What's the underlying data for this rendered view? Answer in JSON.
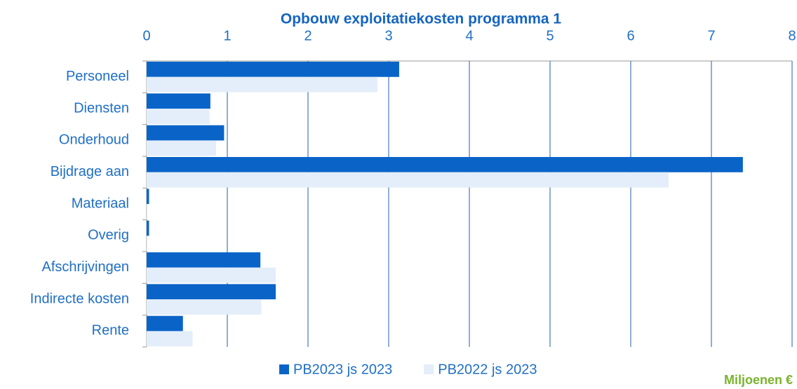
{
  "chart_data": {
    "type": "barh",
    "title": "Opbouw exploitatiekosten programma 1",
    "categories": [
      "Personeel",
      "Diensten",
      "Onderhoud",
      "Bijdrage aan",
      "Materiaal",
      "Overig",
      "Afschrijvingen",
      "Indirecte kosten",
      "Rente"
    ],
    "series": [
      {
        "name": "PB2023 js 2023",
        "color": "#0a64c8",
        "values": [
          3.13,
          0.79,
          0.96,
          7.39,
          0.03,
          0.03,
          1.41,
          1.6,
          0.45
        ]
      },
      {
        "name": "PB2022 js 2023",
        "color": "#e3eefa",
        "values": [
          2.86,
          0.78,
          0.86,
          6.47,
          0.01,
          0.01,
          1.6,
          1.42,
          0.57
        ]
      }
    ],
    "xlim": [
      0,
      8
    ],
    "xticks": [
      0,
      1,
      2,
      3,
      4,
      5,
      6,
      7,
      8
    ],
    "grid": true,
    "legend": "bottom",
    "annotation": "Miljoenen €"
  }
}
